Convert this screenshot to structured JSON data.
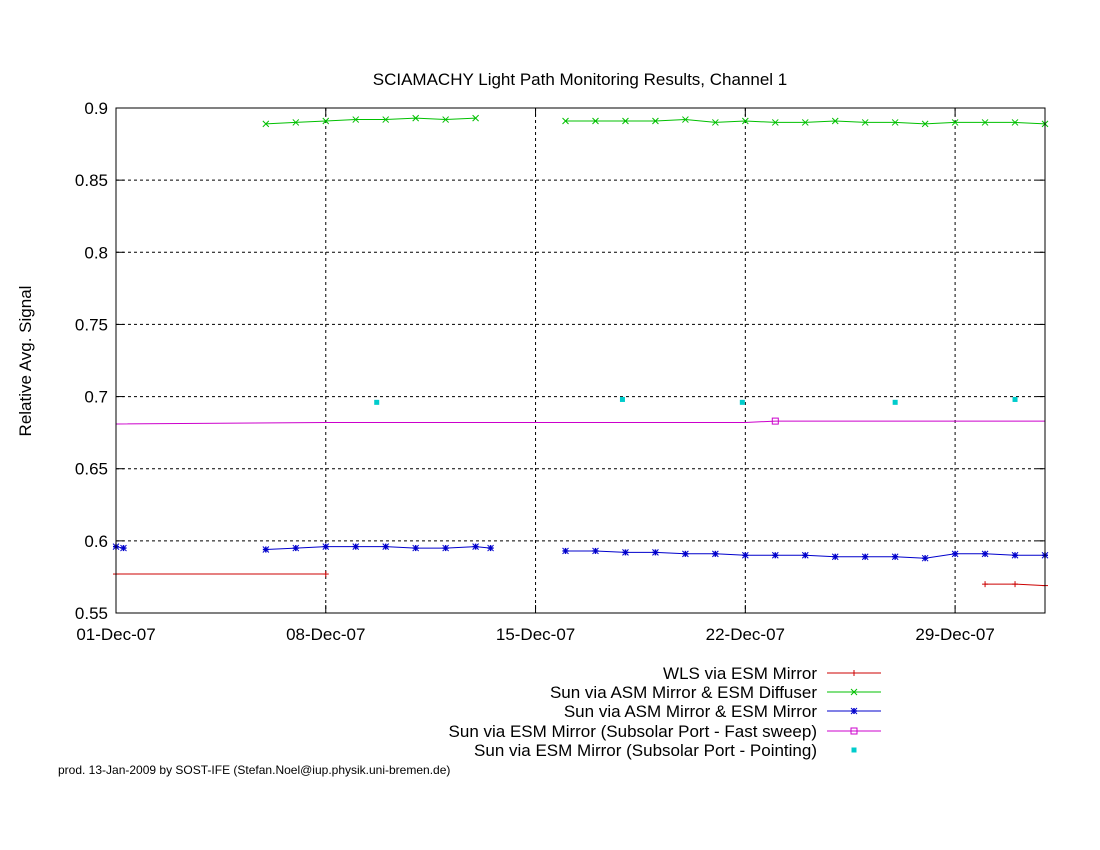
{
  "chart_data": {
    "type": "line",
    "title": "SCIAMACHY Light Path Monitoring Results, Channel 1",
    "ylabel": "Relative Avg. Signal",
    "xlabel": "",
    "x_axis_type": "date",
    "xlim": [
      "2007-12-01",
      "2008-01-01"
    ],
    "ylim": [
      0.55,
      0.9
    ],
    "yticks": [
      0.55,
      0.6,
      0.65,
      0.7,
      0.75,
      0.8,
      0.85,
      0.9
    ],
    "ytick_labels": [
      "0.55",
      "0.6",
      "0.65",
      "0.7",
      "0.75",
      "0.8",
      "0.85",
      "0.9"
    ],
    "xticks": [
      "2007-12-01",
      "2007-12-08",
      "2007-12-15",
      "2007-12-22",
      "2007-12-29"
    ],
    "xtick_labels": [
      "01-Dec-07",
      "08-Dec-07",
      "15-Dec-07",
      "22-Dec-07",
      "29-Dec-07"
    ],
    "grid": true,
    "legend_position": "bottom-right",
    "series": [
      {
        "name": "WLS via ESM Mirror",
        "color": "#cc0000",
        "marker": "plus",
        "x": [
          "2007-12-01",
          "2007-12-08",
          "2007-12-30",
          "2007-12-31",
          "2008-01-01"
        ],
        "y": [
          0.577,
          0.577,
          0.57,
          0.57,
          0.569
        ],
        "segments": [
          [
            0,
            1
          ],
          [
            2,
            4
          ]
        ]
      },
      {
        "name": "Sun via ASM Mirror & ESM Diffuser",
        "color": "#00c000",
        "marker": "cross",
        "x": [
          "2007-12-06",
          "2007-12-07",
          "2007-12-08",
          "2007-12-09",
          "2007-12-10",
          "2007-12-11",
          "2007-12-12",
          "2007-12-13",
          "2007-12-16",
          "2007-12-17",
          "2007-12-18",
          "2007-12-19",
          "2007-12-20",
          "2007-12-21",
          "2007-12-22",
          "2007-12-23",
          "2007-12-24",
          "2007-12-25",
          "2007-12-26",
          "2007-12-27",
          "2007-12-28",
          "2007-12-29",
          "2007-12-30",
          "2007-12-31",
          "2008-01-01"
        ],
        "y": [
          0.889,
          0.89,
          0.891,
          0.892,
          0.892,
          0.893,
          0.892,
          0.893,
          0.891,
          0.891,
          0.891,
          0.891,
          0.892,
          0.89,
          0.891,
          0.89,
          0.89,
          0.891,
          0.89,
          0.89,
          0.889,
          0.89,
          0.89,
          0.89,
          0.889
        ],
        "segments": [
          [
            0,
            7
          ],
          [
            8,
            24
          ]
        ]
      },
      {
        "name": "Sun via ASM Mirror & ESM Mirror",
        "color": "#0000cc",
        "marker": "star",
        "x": [
          "2007-12-01",
          "2007-12-01.25",
          "2007-12-06",
          "2007-12-07",
          "2007-12-08",
          "2007-12-09",
          "2007-12-10",
          "2007-12-11",
          "2007-12-12",
          "2007-12-13",
          "2007-12-13.5",
          "2007-12-16",
          "2007-12-17",
          "2007-12-18",
          "2007-12-19",
          "2007-12-20",
          "2007-12-21",
          "2007-12-22",
          "2007-12-23",
          "2007-12-24",
          "2007-12-25",
          "2007-12-26",
          "2007-12-27",
          "2007-12-28",
          "2007-12-29",
          "2007-12-30",
          "2007-12-31",
          "2008-01-01"
        ],
        "y": [
          0.596,
          0.595,
          0.594,
          0.595,
          0.596,
          0.596,
          0.596,
          0.595,
          0.595,
          0.596,
          0.595,
          0.593,
          0.593,
          0.592,
          0.592,
          0.591,
          0.591,
          0.59,
          0.59,
          0.59,
          0.589,
          0.589,
          0.589,
          0.588,
          0.591,
          0.591,
          0.59,
          0.59
        ],
        "segments": [
          [
            0,
            1
          ],
          [
            2,
            10
          ],
          [
            11,
            27
          ]
        ]
      },
      {
        "name": "Sun via ESM Mirror (Subsolar Port - Fast sweep)",
        "color": "#cc00cc",
        "marker": "square",
        "x": [
          "2007-12-01",
          "2007-12-08",
          "2007-12-15",
          "2007-12-22",
          "2007-12-23",
          "2007-12-29",
          "2008-01-01"
        ],
        "y": [
          0.681,
          0.682,
          0.682,
          0.682,
          0.683,
          0.683,
          0.683
        ],
        "segments": [
          [
            0,
            6
          ]
        ],
        "marked_points": [
          4
        ]
      },
      {
        "name": "Sun via ESM Mirror (Subsolar Port - Pointing)",
        "color": "#00cccc",
        "marker": "dot",
        "x": [
          "2007-12-09.7",
          "2007-12-17.9",
          "2007-12-21.9",
          "2007-12-27",
          "2007-12-31"
        ],
        "y": [
          0.696,
          0.698,
          0.696,
          0.696,
          0.698
        ],
        "segments": []
      }
    ]
  },
  "footer": {
    "text": "prod. 13-Jan-2009 by SOST-IFE (Stefan.Noel@iup.physik.uni-bremen.de)"
  }
}
